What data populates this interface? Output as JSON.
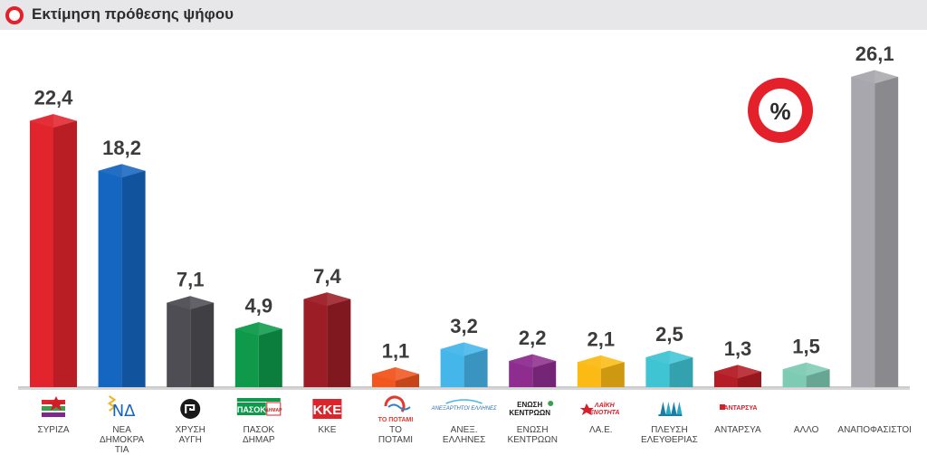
{
  "header": {
    "title": "Εκτίμηση πρόθεσης ψήφου"
  },
  "badge": {
    "text": "%"
  },
  "chart_data": {
    "type": "bar",
    "title": "Εκτίμηση πρόθεσης ψήφου",
    "unit": "%",
    "ylim": [
      0,
      26.1
    ],
    "categories": [
      {
        "label": [
          "ΣΥΡΙΖΑ"
        ],
        "value": 22.4,
        "display": "22,4",
        "color": "#e2242d",
        "logo": "syriza"
      },
      {
        "label": [
          "ΝΕΑ",
          "ΔΗΜΟΚΡΑ",
          "ΤΙΑ"
        ],
        "value": 18.2,
        "display": "18,2",
        "color": "#1566c0",
        "logo": "nd"
      },
      {
        "label": [
          "ΧΡΥΣΗ",
          "ΑΥΓΗ"
        ],
        "value": 7.1,
        "display": "7,1",
        "color": "#4d4d53",
        "logo": "xa"
      },
      {
        "label": [
          "ΠΑΣΟΚ",
          "ΔΗΜΑΡ"
        ],
        "value": 4.9,
        "display": "4,9",
        "color": "#0e9a4a",
        "logo": "pasok"
      },
      {
        "label": [
          "ΚΚΕ"
        ],
        "value": 7.4,
        "display": "7,4",
        "color": "#9c1d26",
        "logo": "kke"
      },
      {
        "label": [
          "ΤΟ",
          "ΠΟΤΑΜΙ"
        ],
        "value": 1.1,
        "display": "1,1",
        "color": "#f0561e",
        "logo": "potami"
      },
      {
        "label": [
          "ΑΝΕΞ.",
          "ΕΛΛΗΝΕΣ"
        ],
        "value": 3.2,
        "display": "3,2",
        "color": "#45b6ea",
        "logo": "anel"
      },
      {
        "label": [
          "ΕΝΩΣΗ",
          "ΚΕΝΤΡΩΩΝ"
        ],
        "value": 2.2,
        "display": "2,2",
        "color": "#8e2d8f",
        "logo": "enosi"
      },
      {
        "label": [
          "ΛΑ.Ε."
        ],
        "value": 2.1,
        "display": "2,1",
        "color": "#fbbb14",
        "logo": "lae"
      },
      {
        "label": [
          "ΠΛΕΥΣΗ",
          "ΕΛΕΥΘΕΡΙΑΣ"
        ],
        "value": 2.5,
        "display": "2,5",
        "color": "#3fc4d4",
        "logo": "plefsi"
      },
      {
        "label": [
          "ΑΝΤΑΡΣΥΑ"
        ],
        "value": 1.3,
        "display": "1,3",
        "color": "#b41d25",
        "logo": "antarsya"
      },
      {
        "label": [
          "ΑΛΛΟ"
        ],
        "value": 1.5,
        "display": "1,5",
        "color": "#7dcbb3",
        "logo": "allo"
      },
      {
        "label": [
          "ΑΝΑΠΟΦΑΣΙΣΤΟΙ"
        ],
        "value": 26.1,
        "display": "26,1",
        "color": "#a7a7ad",
        "logo": "none"
      }
    ],
    "logo_text": {
      "pasok": "ΠΑΣΟΚ",
      "pasok_small": "ΔΗΜΑΡ",
      "kke": "ΚΚΕ",
      "potami": "ΤΟ ΠΟΤΑΜΙ",
      "anel": "ΑΝΕΞΑΡΤΗΤΟΙ ΕΛΛΗΝΕΣ",
      "enosi": [
        "ΕΝΩΣΗ",
        "ΚΕΝΤΡΩΩΝ"
      ],
      "lae": [
        "ΛΑΪΚΗ",
        "ΕΝΟΤΗΤΑ"
      ],
      "antarsya": "ΑΝΤΑΡΣΥΑ"
    }
  }
}
